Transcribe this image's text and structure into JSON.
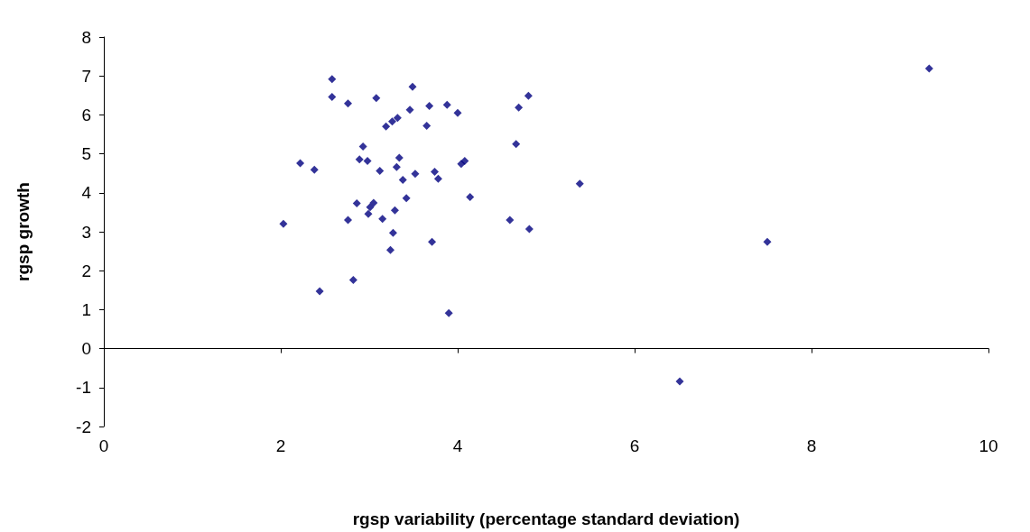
{
  "chart_data": {
    "type": "scatter",
    "xlabel": "rgsp variability (percentage standard deviation)",
    "ylabel": "rgsp growth",
    "xlim": [
      0,
      10
    ],
    "xticks": [
      0,
      2,
      4,
      6,
      8,
      10
    ],
    "ylim": [
      -2,
      8
    ],
    "yticks": [
      -2,
      -1,
      0,
      1,
      2,
      3,
      4,
      5,
      6,
      7,
      8
    ],
    "marker": "diamond",
    "series": [
      {
        "color": "#000080",
        "x": [
          2.58,
          2.58,
          2.76,
          3.08,
          3.49,
          3.46,
          3.32,
          3.19,
          3.26,
          3.68,
          3.88,
          4.0,
          3.65,
          2.93,
          2.89,
          2.98,
          2.22,
          2.38,
          3.12,
          3.34,
          3.31,
          3.38,
          3.52,
          3.74,
          3.78,
          4.04,
          4.08,
          4.14,
          2.86,
          3.05,
          3.01,
          3.42,
          3.29,
          2.03,
          2.76,
          2.99,
          3.15,
          3.27,
          3.24,
          3.71,
          2.82,
          2.44,
          3.9,
          4.8,
          4.69,
          4.66,
          4.59,
          4.81,
          5.38,
          7.5,
          9.33,
          6.51
        ],
        "values": [
          6.92,
          6.46,
          6.29,
          6.43,
          6.72,
          6.13,
          5.92,
          5.7,
          5.83,
          6.23,
          6.26,
          6.05,
          5.72,
          5.19,
          4.86,
          4.82,
          4.76,
          4.59,
          4.56,
          4.9,
          4.66,
          4.33,
          4.49,
          4.54,
          4.36,
          4.74,
          4.82,
          3.89,
          3.73,
          3.74,
          3.63,
          3.86,
          3.55,
          3.2,
          3.3,
          3.46,
          3.33,
          2.97,
          2.53,
          2.74,
          1.76,
          1.47,
          0.91,
          6.49,
          6.19,
          5.25,
          3.3,
          3.07,
          4.23,
          2.74,
          7.19,
          -0.84
        ]
      }
    ]
  }
}
